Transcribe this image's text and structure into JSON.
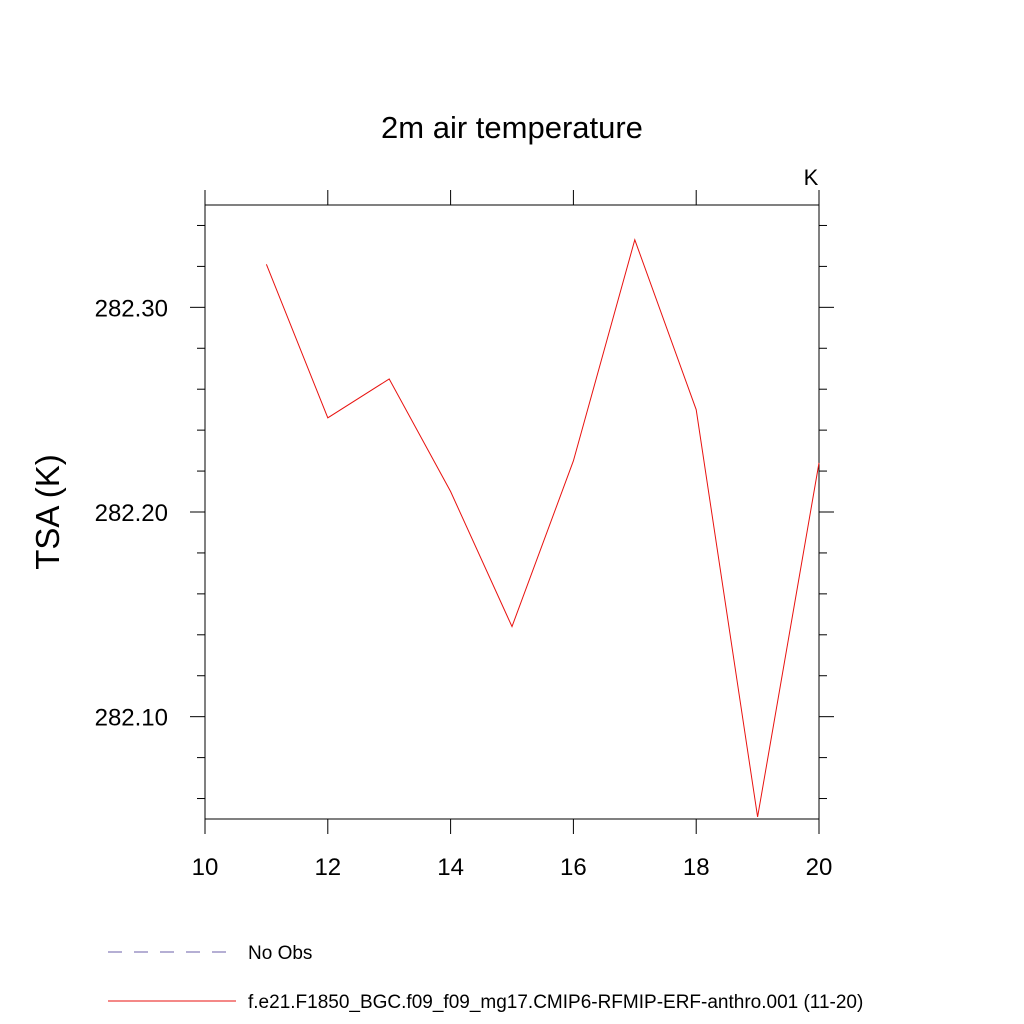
{
  "chart_data": {
    "type": "line",
    "title": "2m air temperature",
    "ylabel": "TSA  (K)",
    "xlabel": "",
    "units": "K",
    "xlim": [
      10,
      20
    ],
    "ylim": [
      282.05,
      282.35
    ],
    "x_ticks": [
      10,
      12,
      14,
      16,
      18,
      20
    ],
    "x_tick_labels": [
      "10",
      "12",
      "14",
      "16",
      "18",
      "20"
    ],
    "y_ticks": [
      282.1,
      282.2,
      282.3
    ],
    "y_tick_labels": [
      "282.10",
      "282.20",
      "282.30"
    ],
    "grid": false,
    "legend_placement": "bottom",
    "series": [
      {
        "name": "f.e21.F1850_BGC.f09_f09_mg17.CMIP6-RFMIP-ERF-anthro.001 (11-20)",
        "color": "#e8120f",
        "style": "solid",
        "x": [
          11,
          12,
          13,
          14,
          15,
          16,
          17,
          18,
          19,
          20
        ],
        "values": [
          282.321,
          282.246,
          282.265,
          282.21,
          282.144,
          282.225,
          282.333,
          282.25,
          282.051,
          282.224
        ]
      }
    ],
    "legend": [
      {
        "label": "No Obs",
        "color": "#6b5fa8",
        "style": "dashed"
      },
      {
        "label": "f.e21.F1850_BGC.f09_f09_mg17.CMIP6-RFMIP-ERF-anthro.001 (11-20)",
        "color": "#e8120f",
        "style": "solid"
      }
    ]
  }
}
